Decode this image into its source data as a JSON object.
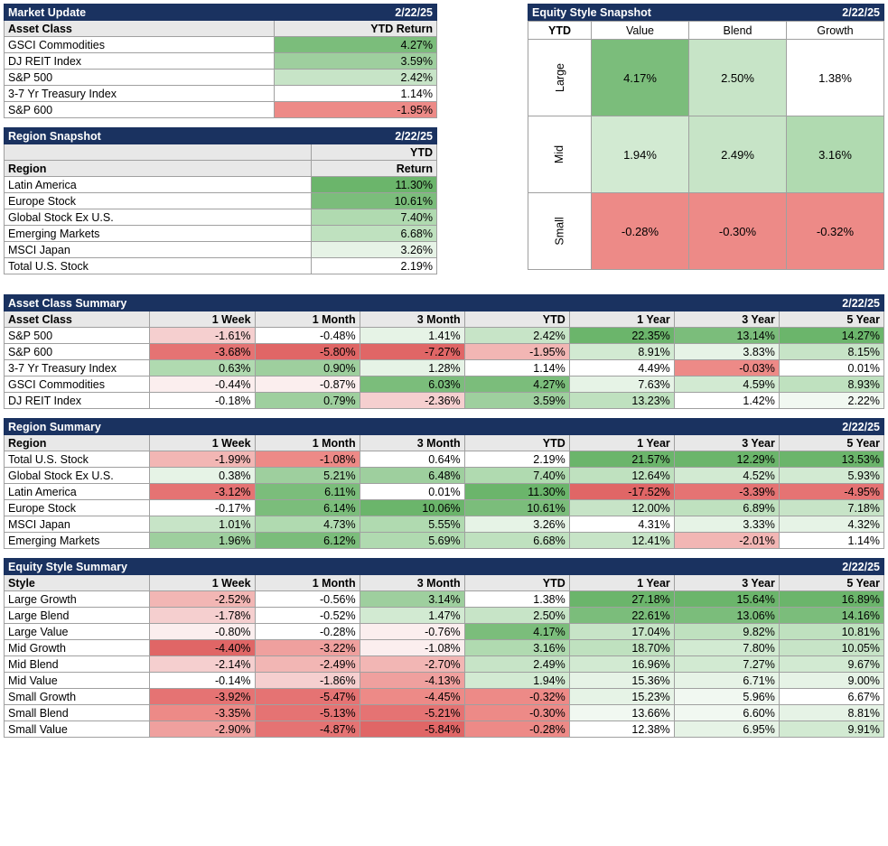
{
  "date": "2/22/25",
  "colors": {
    "header_bg": "#1a3260",
    "header_fg": "#ffffff",
    "subhead_bg": "#e8e8e8",
    "border": "#a0a0a0"
  },
  "market_update": {
    "title": "Market Update",
    "col_asset": "Asset Class",
    "col_return": "YTD Return",
    "rows": [
      {
        "label": "GSCI Commodities",
        "value": "4.27%",
        "bg": "#7bbd7b"
      },
      {
        "label": "DJ REIT Index",
        "value": "3.59%",
        "bg": "#9ecf9e"
      },
      {
        "label": "S&P 500",
        "value": "2.42%",
        "bg": "#c7e4c7"
      },
      {
        "label": "3-7 Yr Treasury Index",
        "value": "1.14%",
        "bg": "#ffffff"
      },
      {
        "label": "S&P 600",
        "value": "-1.95%",
        "bg": "#ed8a87"
      }
    ]
  },
  "region_snapshot": {
    "title": "Region Snapshot",
    "col_region": "Region",
    "col_return_l1": "YTD",
    "col_return_l2": "Return",
    "rows": [
      {
        "label": "Latin America",
        "value": "11.30%",
        "bg": "#6bb56b"
      },
      {
        "label": "Europe Stock",
        "value": "10.61%",
        "bg": "#7bbd7b"
      },
      {
        "label": "Global Stock Ex U.S.",
        "value": "7.40%",
        "bg": "#b0dab0"
      },
      {
        "label": "Emerging Markets",
        "value": "6.68%",
        "bg": "#bfe1bf"
      },
      {
        "label": "MSCI Japan",
        "value": "3.26%",
        "bg": "#e6f3e6"
      },
      {
        "label": "Total U.S. Stock",
        "value": "2.19%",
        "bg": "#ffffff"
      }
    ]
  },
  "equity_style_snapshot": {
    "title": "Equity Style Snapshot",
    "ytd_label": "YTD",
    "cols": [
      "Value",
      "Blend",
      "Growth"
    ],
    "rows": [
      "Large",
      "Mid",
      "Small"
    ],
    "cells": [
      [
        {
          "v": "4.17%",
          "bg": "#7bbd7b"
        },
        {
          "v": "2.50%",
          "bg": "#c7e4c7"
        },
        {
          "v": "1.38%",
          "bg": "#ffffff"
        }
      ],
      [
        {
          "v": "1.94%",
          "bg": "#d2ead2"
        },
        {
          "v": "2.49%",
          "bg": "#c7e4c7"
        },
        {
          "v": "3.16%",
          "bg": "#b0dab0"
        }
      ],
      [
        {
          "v": "-0.28%",
          "bg": "#ed8a87"
        },
        {
          "v": "-0.30%",
          "bg": "#ed8a87"
        },
        {
          "v": "-0.32%",
          "bg": "#ed8a87"
        }
      ]
    ]
  },
  "periods": [
    "1 Week",
    "1 Month",
    "3 Month",
    "YTD",
    "1 Year",
    "3 Year",
    "5 Year"
  ],
  "asset_class_summary": {
    "title": "Asset Class Summary",
    "label_col": "Asset Class",
    "rows": [
      {
        "label": "S&P 500",
        "cells": [
          {
            "v": "-1.61%",
            "bg": "#f5cfcf"
          },
          {
            "v": "-0.48%",
            "bg": "#ffffff"
          },
          {
            "v": "1.41%",
            "bg": "#e6f3e6"
          },
          {
            "v": "2.42%",
            "bg": "#c7e4c7"
          },
          {
            "v": "22.35%",
            "bg": "#6bb56b"
          },
          {
            "v": "13.14%",
            "bg": "#7bbd7b"
          },
          {
            "v": "14.27%",
            "bg": "#6bb56b"
          }
        ]
      },
      {
        "label": "S&P 600",
        "cells": [
          {
            "v": "-3.68%",
            "bg": "#e57373"
          },
          {
            "v": "-5.80%",
            "bg": "#e06666"
          },
          {
            "v": "-7.27%",
            "bg": "#e06666"
          },
          {
            "v": "-1.95%",
            "bg": "#f2b6b4"
          },
          {
            "v": "8.91%",
            "bg": "#d2ead2"
          },
          {
            "v": "3.83%",
            "bg": "#e6f3e6"
          },
          {
            "v": "8.15%",
            "bg": "#c7e4c7"
          }
        ]
      },
      {
        "label": "3-7 Yr Treasury Index",
        "cells": [
          {
            "v": "0.63%",
            "bg": "#b0dab0"
          },
          {
            "v": "0.90%",
            "bg": "#9ecf9e"
          },
          {
            "v": "1.28%",
            "bg": "#e6f3e6"
          },
          {
            "v": "1.14%",
            "bg": "#ffffff"
          },
          {
            "v": "4.49%",
            "bg": "#ffffff"
          },
          {
            "v": "-0.03%",
            "bg": "#ed8a87"
          },
          {
            "v": "0.01%",
            "bg": "#ffffff"
          }
        ]
      },
      {
        "label": "GSCI Commodities",
        "cells": [
          {
            "v": "-0.44%",
            "bg": "#fbeeee"
          },
          {
            "v": "-0.87%",
            "bg": "#fbeeee"
          },
          {
            "v": "6.03%",
            "bg": "#7bbd7b"
          },
          {
            "v": "4.27%",
            "bg": "#7bbd7b"
          },
          {
            "v": "7.63%",
            "bg": "#e6f3e6"
          },
          {
            "v": "4.59%",
            "bg": "#d2ead2"
          },
          {
            "v": "8.93%",
            "bg": "#bfe1bf"
          }
        ]
      },
      {
        "label": "DJ REIT Index",
        "cells": [
          {
            "v": "-0.18%",
            "bg": "#ffffff"
          },
          {
            "v": "0.79%",
            "bg": "#9ecf9e"
          },
          {
            "v": "-2.36%",
            "bg": "#f5cfcf"
          },
          {
            "v": "3.59%",
            "bg": "#9ecf9e"
          },
          {
            "v": "13.23%",
            "bg": "#bfe1bf"
          },
          {
            "v": "1.42%",
            "bg": "#ffffff"
          },
          {
            "v": "2.22%",
            "bg": "#f1f8f1"
          }
        ]
      }
    ]
  },
  "region_summary": {
    "title": "Region Summary",
    "label_col": "Region",
    "rows": [
      {
        "label": "Total U.S. Stock",
        "cells": [
          {
            "v": "-1.99%",
            "bg": "#f2b6b4"
          },
          {
            "v": "-1.08%",
            "bg": "#ed8a87"
          },
          {
            "v": "0.64%",
            "bg": "#ffffff"
          },
          {
            "v": "2.19%",
            "bg": "#ffffff"
          },
          {
            "v": "21.57%",
            "bg": "#6bb56b"
          },
          {
            "v": "12.29%",
            "bg": "#6bb56b"
          },
          {
            "v": "13.53%",
            "bg": "#6bb56b"
          }
        ]
      },
      {
        "label": "Global Stock Ex U.S.",
        "cells": [
          {
            "v": "0.38%",
            "bg": "#e6f3e6"
          },
          {
            "v": "5.21%",
            "bg": "#9ecf9e"
          },
          {
            "v": "6.48%",
            "bg": "#9ecf9e"
          },
          {
            "v": "7.40%",
            "bg": "#b0dab0"
          },
          {
            "v": "12.64%",
            "bg": "#bfe1bf"
          },
          {
            "v": "4.52%",
            "bg": "#d2ead2"
          },
          {
            "v": "5.93%",
            "bg": "#d2ead2"
          }
        ]
      },
      {
        "label": "Latin America",
        "cells": [
          {
            "v": "-3.12%",
            "bg": "#e57373"
          },
          {
            "v": "6.11%",
            "bg": "#7bbd7b"
          },
          {
            "v": "0.01%",
            "bg": "#ffffff"
          },
          {
            "v": "11.30%",
            "bg": "#6bb56b"
          },
          {
            "v": "-17.52%",
            "bg": "#e06666"
          },
          {
            "v": "-3.39%",
            "bg": "#e57373"
          },
          {
            "v": "-4.95%",
            "bg": "#e57373"
          }
        ]
      },
      {
        "label": "Europe Stock",
        "cells": [
          {
            "v": "-0.17%",
            "bg": "#ffffff"
          },
          {
            "v": "6.14%",
            "bg": "#7bbd7b"
          },
          {
            "v": "10.06%",
            "bg": "#6bb56b"
          },
          {
            "v": "10.61%",
            "bg": "#7bbd7b"
          },
          {
            "v": "12.00%",
            "bg": "#c7e4c7"
          },
          {
            "v": "6.89%",
            "bg": "#bfe1bf"
          },
          {
            "v": "7.18%",
            "bg": "#c7e4c7"
          }
        ]
      },
      {
        "label": "MSCI Japan",
        "cells": [
          {
            "v": "1.01%",
            "bg": "#c7e4c7"
          },
          {
            "v": "4.73%",
            "bg": "#b0dab0"
          },
          {
            "v": "5.55%",
            "bg": "#b0dab0"
          },
          {
            "v": "3.26%",
            "bg": "#e6f3e6"
          },
          {
            "v": "4.31%",
            "bg": "#ffffff"
          },
          {
            "v": "3.33%",
            "bg": "#e6f3e6"
          },
          {
            "v": "4.32%",
            "bg": "#e6f3e6"
          }
        ]
      },
      {
        "label": "Emerging Markets",
        "cells": [
          {
            "v": "1.96%",
            "bg": "#9ecf9e"
          },
          {
            "v": "6.12%",
            "bg": "#7bbd7b"
          },
          {
            "v": "5.69%",
            "bg": "#b0dab0"
          },
          {
            "v": "6.68%",
            "bg": "#bfe1bf"
          },
          {
            "v": "12.41%",
            "bg": "#c7e4c7"
          },
          {
            "v": "-2.01%",
            "bg": "#f2b6b4"
          },
          {
            "v": "1.14%",
            "bg": "#ffffff"
          }
        ]
      }
    ]
  },
  "equity_style_summary": {
    "title": "Equity Style Summary",
    "label_col": "Style",
    "rows": [
      {
        "label": "Large Growth",
        "cells": [
          {
            "v": "-2.52%",
            "bg": "#f2b6b4"
          },
          {
            "v": "-0.56%",
            "bg": "#ffffff"
          },
          {
            "v": "3.14%",
            "bg": "#9ecf9e"
          },
          {
            "v": "1.38%",
            "bg": "#ffffff"
          },
          {
            "v": "27.18%",
            "bg": "#6bb56b"
          },
          {
            "v": "15.64%",
            "bg": "#6bb56b"
          },
          {
            "v": "16.89%",
            "bg": "#6bb56b"
          }
        ]
      },
      {
        "label": "Large Blend",
        "cells": [
          {
            "v": "-1.78%",
            "bg": "#f5cfcf"
          },
          {
            "v": "-0.52%",
            "bg": "#ffffff"
          },
          {
            "v": "1.47%",
            "bg": "#d2ead2"
          },
          {
            "v": "2.50%",
            "bg": "#c7e4c7"
          },
          {
            "v": "22.61%",
            "bg": "#7bbd7b"
          },
          {
            "v": "13.06%",
            "bg": "#7bbd7b"
          },
          {
            "v": "14.16%",
            "bg": "#7bbd7b"
          }
        ]
      },
      {
        "label": "Large Value",
        "cells": [
          {
            "v": "-0.80%",
            "bg": "#fbeeee"
          },
          {
            "v": "-0.28%",
            "bg": "#ffffff"
          },
          {
            "v": "-0.76%",
            "bg": "#fbeeee"
          },
          {
            "v": "4.17%",
            "bg": "#7bbd7b"
          },
          {
            "v": "17.04%",
            "bg": "#c7e4c7"
          },
          {
            "v": "9.82%",
            "bg": "#bfe1bf"
          },
          {
            "v": "10.81%",
            "bg": "#bfe1bf"
          }
        ]
      },
      {
        "label": "Mid Growth",
        "cells": [
          {
            "v": "-4.40%",
            "bg": "#e06666"
          },
          {
            "v": "-3.22%",
            "bg": "#efa09e"
          },
          {
            "v": "-1.08%",
            "bg": "#fbeeee"
          },
          {
            "v": "3.16%",
            "bg": "#b0dab0"
          },
          {
            "v": "18.70%",
            "bg": "#bfe1bf"
          },
          {
            "v": "7.80%",
            "bg": "#d2ead2"
          },
          {
            "v": "10.05%",
            "bg": "#c7e4c7"
          }
        ]
      },
      {
        "label": "Mid Blend",
        "cells": [
          {
            "v": "-2.14%",
            "bg": "#f5cfcf"
          },
          {
            "v": "-2.49%",
            "bg": "#f2b6b4"
          },
          {
            "v": "-2.70%",
            "bg": "#f2b6b4"
          },
          {
            "v": "2.49%",
            "bg": "#c7e4c7"
          },
          {
            "v": "16.96%",
            "bg": "#d2ead2"
          },
          {
            "v": "7.27%",
            "bg": "#d2ead2"
          },
          {
            "v": "9.67%",
            "bg": "#d2ead2"
          }
        ]
      },
      {
        "label": "Mid Value",
        "cells": [
          {
            "v": "-0.14%",
            "bg": "#ffffff"
          },
          {
            "v": "-1.86%",
            "bg": "#f5cfcf"
          },
          {
            "v": "-4.13%",
            "bg": "#efa09e"
          },
          {
            "v": "1.94%",
            "bg": "#d2ead2"
          },
          {
            "v": "15.36%",
            "bg": "#e6f3e6"
          },
          {
            "v": "6.71%",
            "bg": "#e6f3e6"
          },
          {
            "v": "9.00%",
            "bg": "#e6f3e6"
          }
        ]
      },
      {
        "label": "Small Growth",
        "cells": [
          {
            "v": "-3.92%",
            "bg": "#e57373"
          },
          {
            "v": "-5.47%",
            "bg": "#e57373"
          },
          {
            "v": "-4.45%",
            "bg": "#ed8a87"
          },
          {
            "v": "-0.32%",
            "bg": "#ed8a87"
          },
          {
            "v": "15.23%",
            "bg": "#e6f3e6"
          },
          {
            "v": "5.96%",
            "bg": "#f1f8f1"
          },
          {
            "v": "6.67%",
            "bg": "#ffffff"
          }
        ]
      },
      {
        "label": "Small Blend",
        "cells": [
          {
            "v": "-3.35%",
            "bg": "#ed8a87"
          },
          {
            "v": "-5.13%",
            "bg": "#e57373"
          },
          {
            "v": "-5.21%",
            "bg": "#e57373"
          },
          {
            "v": "-0.30%",
            "bg": "#ed8a87"
          },
          {
            "v": "13.66%",
            "bg": "#f1f8f1"
          },
          {
            "v": "6.60%",
            "bg": "#f1f8f1"
          },
          {
            "v": "8.81%",
            "bg": "#e6f3e6"
          }
        ]
      },
      {
        "label": "Small Value",
        "cells": [
          {
            "v": "-2.90%",
            "bg": "#efa09e"
          },
          {
            "v": "-4.87%",
            "bg": "#e57373"
          },
          {
            "v": "-5.84%",
            "bg": "#e06666"
          },
          {
            "v": "-0.28%",
            "bg": "#ed8a87"
          },
          {
            "v": "12.38%",
            "bg": "#ffffff"
          },
          {
            "v": "6.95%",
            "bg": "#e6f3e6"
          },
          {
            "v": "9.91%",
            "bg": "#d2ead2"
          }
        ]
      }
    ]
  }
}
